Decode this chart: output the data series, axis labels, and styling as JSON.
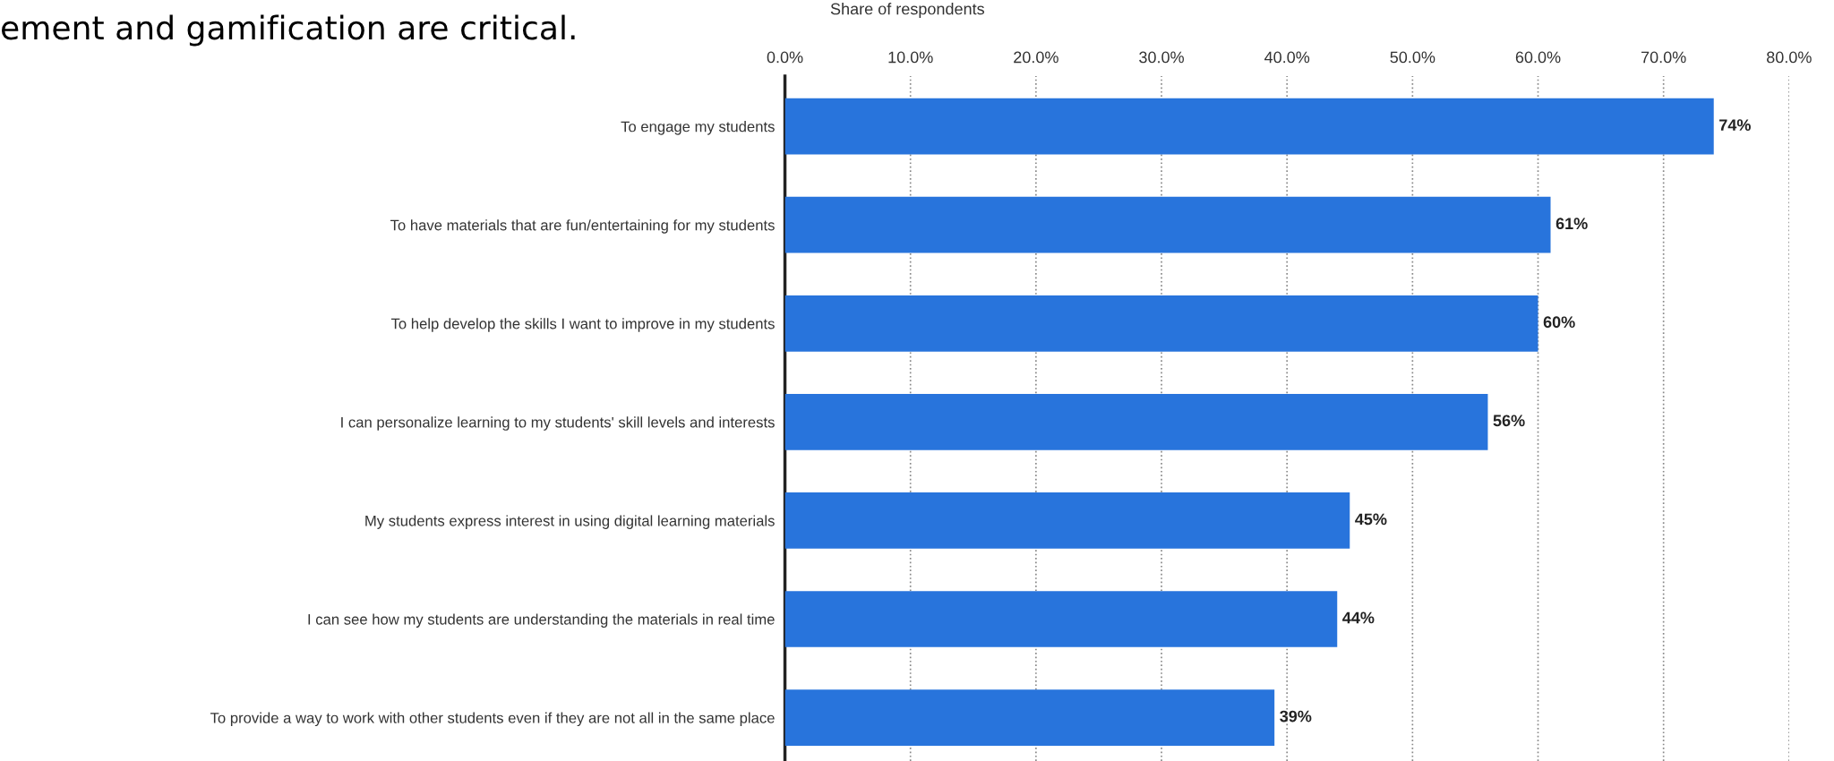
{
  "chart_data": {
    "type": "bar",
    "orientation": "horizontal",
    "xlabel": "Share of respondents",
    "categories": [
      "To engage my students",
      "To have materials that are fun/entertaining for my students",
      "To help develop the skills I want to improve in my students",
      "I can personalize learning to my students' skill levels and interests",
      "My students express interest in using digital learning materials",
      "I can see how my students are understanding the materials in real time",
      "To provide a way to work with other students even if they are not all in the same place"
    ],
    "values": [
      74,
      61,
      60,
      56,
      45,
      44,
      39
    ],
    "value_labels": [
      "74%",
      "61%",
      "60%",
      "56%",
      "45%",
      "44%",
      "39%"
    ],
    "color": "#2874dc",
    "xlim": [
      0,
      80
    ],
    "xticks": [
      {
        "value": 0,
        "label": "0.0%"
      },
      {
        "value": 10,
        "label": "10.0%"
      },
      {
        "value": 20,
        "label": "20.0%"
      },
      {
        "value": 30,
        "label": "30.0%"
      },
      {
        "value": 40,
        "label": "40.0%"
      },
      {
        "value": 50,
        "label": "50.0%"
      },
      {
        "value": 60,
        "label": "60.0%"
      },
      {
        "value": 70,
        "label": "70.0%"
      },
      {
        "value": 80,
        "label": "80.0%"
      }
    ],
    "grid": "x",
    "line_style": "dotted",
    "annotations": [
      "ement and gamification are critical."
    ]
  }
}
